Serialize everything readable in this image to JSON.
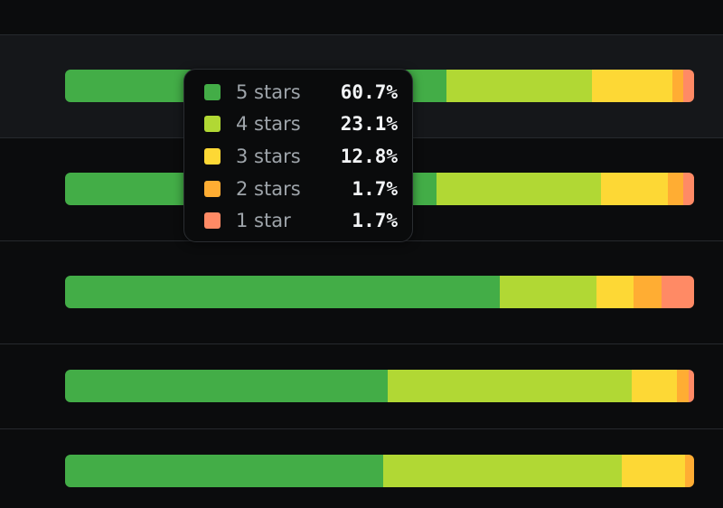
{
  "colors": {
    "5": "#43ad47",
    "4": "#b1d834",
    "3": "#fdd835",
    "2": "#ffad33",
    "1": "#ff8a65"
  },
  "tooltip": {
    "items": [
      {
        "key": "5",
        "label": "5 stars",
        "value": "60.7%",
        "icon": "green-swatch"
      },
      {
        "key": "4",
        "label": "4 stars",
        "value": "23.1%",
        "icon": "lime-swatch"
      },
      {
        "key": "3",
        "label": "3 stars",
        "value": "12.8%",
        "icon": "yellow-swatch"
      },
      {
        "key": "2",
        "label": "2 stars",
        "value": "1.7%",
        "icon": "orange-swatch"
      },
      {
        "key": "1",
        "label": "1 star",
        "value": "1.7%",
        "icon": "salmon-swatch"
      }
    ]
  },
  "rating_rows": [
    {
      "distribution": [
        60.7,
        23.1,
        12.8,
        1.7,
        1.7
      ]
    },
    {
      "distribution": [
        59.1,
        26.1,
        10.7,
        2.4,
        1.7
      ]
    },
    {
      "distribution": [
        69.1,
        15.4,
        5.9,
        4.4,
        5.2
      ]
    },
    {
      "distribution": [
        51.3,
        38.8,
        7.1,
        1.9,
        0.9
      ]
    },
    {
      "distribution": [
        50.6,
        37.9,
        10.1,
        1.4,
        0.0
      ]
    }
  ]
}
